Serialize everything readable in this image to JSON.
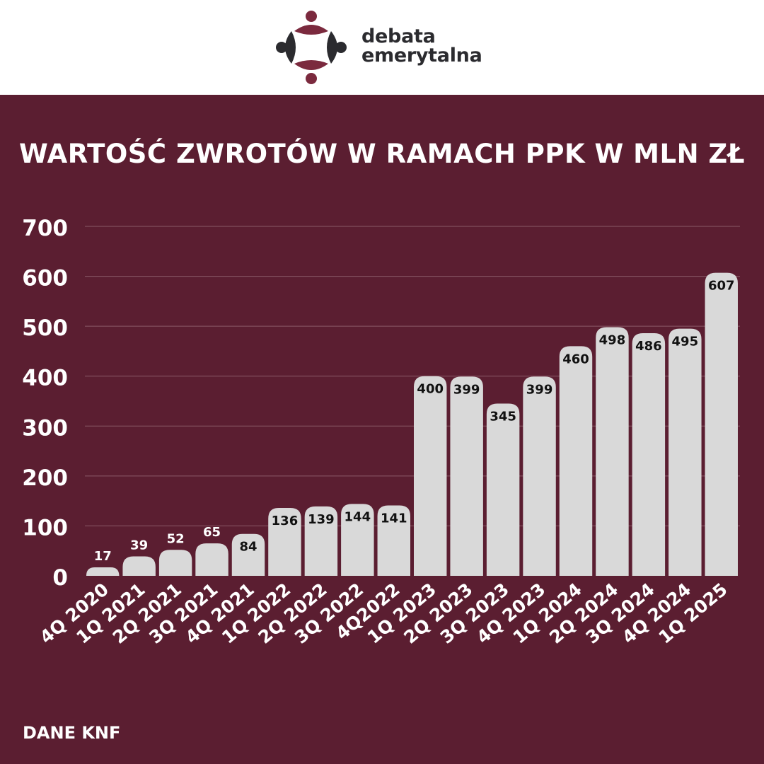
{
  "brand": {
    "name_line1": "debata",
    "name_line2": "emerytalna",
    "logo_icon": "people-circle-logo-icon"
  },
  "colors": {
    "background": "#5b1e31",
    "bar": "#d9d9d9",
    "accent": "#7b2a3e",
    "dark": "#2b2b2f",
    "grid": "#8a5a68",
    "text": "#ffffff"
  },
  "source": "DANE KNF",
  "chart_data": {
    "type": "bar",
    "title": "WARTOŚĆ ZWROTÓW W RAMACH PPK W MLN ZŁ",
    "xlabel": "",
    "ylabel": "",
    "ylim": [
      0,
      700
    ],
    "yticks": [
      0,
      100,
      200,
      300,
      400,
      500,
      600,
      700
    ],
    "grid": true,
    "categories": [
      "4Q 2020",
      "1Q 2021",
      "2Q 2021",
      "3Q 2021",
      "4Q 2021",
      "1Q 2022",
      "2Q 2022",
      "3Q 2022",
      "4Q2022",
      "1Q 2023",
      "2Q 2023",
      "3Q 2023",
      "4Q 2023",
      "1Q 2024",
      "2Q 2024",
      "3Q 2024",
      "4Q 2024",
      "1Q 2025"
    ],
    "values": [
      17,
      39,
      52,
      65,
      84,
      136,
      139,
      144,
      141,
      400,
      399,
      345,
      399,
      460,
      498,
      486,
      495,
      607
    ]
  }
}
